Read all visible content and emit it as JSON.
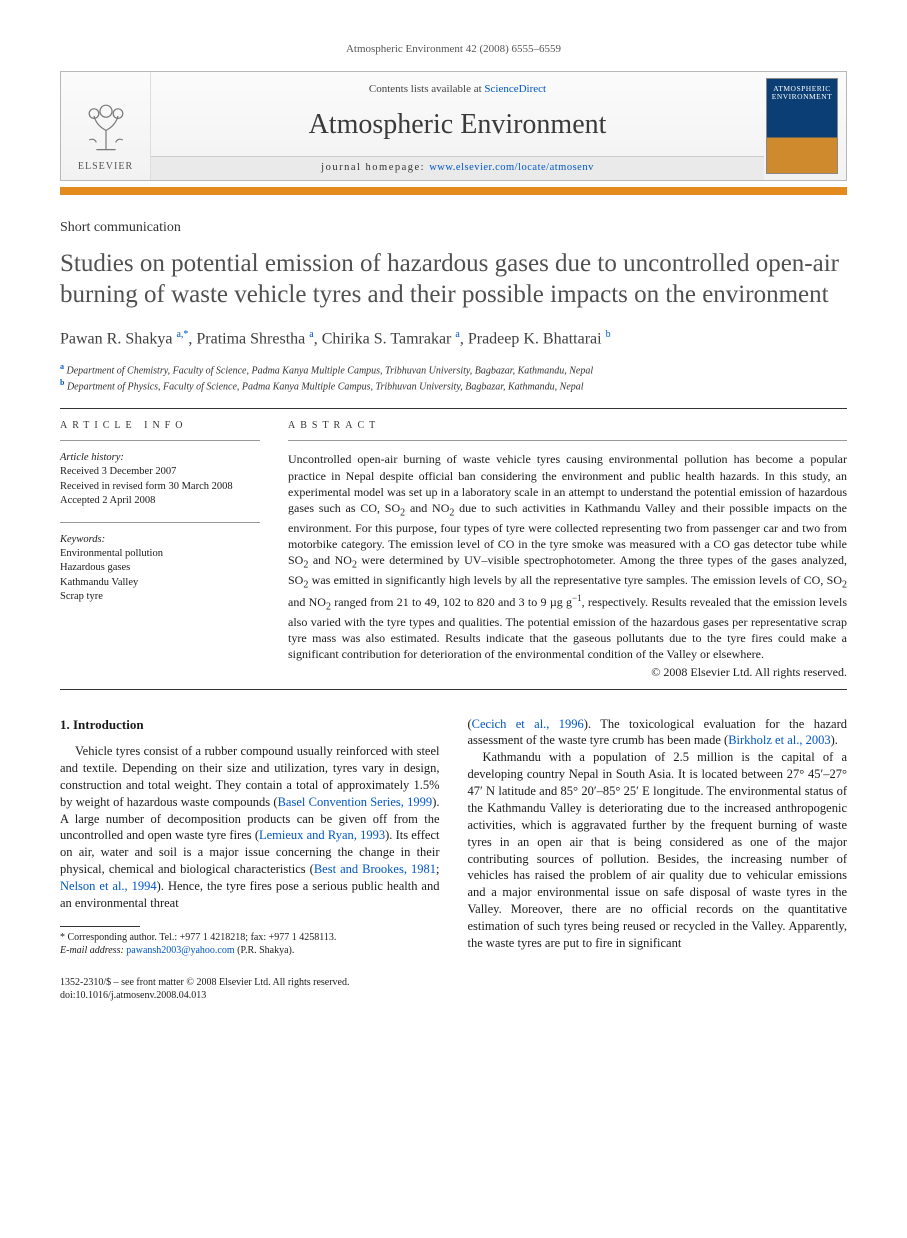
{
  "running_head": "Atmospheric Environment 42 (2008) 6555–6559",
  "masthead": {
    "contents_prefix": "Contents lists available at ",
    "contents_link": "ScienceDirect",
    "journal": "Atmospheric Environment",
    "homepage_prefix": "journal homepage: ",
    "homepage_url": "www.elsevier.com/locate/atmosenv",
    "publisher": "ELSEVIER",
    "cover_title": "ATMOSPHERIC ENVIRONMENT"
  },
  "article_type": "Short communication",
  "title": "Studies on potential emission of hazardous gases due to uncontrolled open-air burning of waste vehicle tyres and their possible impacts on the environment",
  "authors_html": "Pawan R. Shakya <span class='sup'>a,*</span>, Pratima Shrestha <span class='sup'>a</span>, Chirika S. Tamrakar <span class='sup'>a</span>, Pradeep K. Bhattarai <span class='sup'>b</span>",
  "affiliations": {
    "a": "Department of Chemistry, Faculty of Science, Padma Kanya Multiple Campus, Tribhuvan University, Bagbazar, Kathmandu, Nepal",
    "b": "Department of Physics, Faculty of Science, Padma Kanya Multiple Campus, Tribhuvan University, Bagbazar, Kathmandu, Nepal"
  },
  "info_label": "ARTICLE INFO",
  "abstract_label": "ABSTRACT",
  "history": {
    "heading": "Article history:",
    "received": "Received 3 December 2007",
    "revised": "Received in revised form 30 March 2008",
    "accepted": "Accepted 2 April 2008"
  },
  "keywords": {
    "heading": "Keywords:",
    "items": [
      "Environmental pollution",
      "Hazardous gases",
      "Kathmandu Valley",
      "Scrap tyre"
    ]
  },
  "abstract_html": "Uncontrolled open-air burning of waste vehicle tyres causing environmental pollution has become a popular practice in Nepal despite official ban considering the environment and public health hazards. In this study, an experimental model was set up in a laboratory scale in an attempt to understand the potential emission of hazardous gases such as CO, SO<sub>2</sub> and NO<sub>2</sub> due to such activities in Kathmandu Valley and their possible impacts on the environment. For this purpose, four types of tyre were collected representing two from passenger car and two from motorbike category. The emission level of CO in the tyre smoke was measured with a CO gas detector tube while SO<sub>2</sub> and NO<sub>2</sub> were determined by UV–visible spectrophotometer. Among the three types of the gases analyzed, SO<sub>2</sub> was emitted in significantly high levels by all the representative tyre samples. The emission levels of CO, SO<sub>2</sub> and NO<sub>2</sub> ranged from 21 to 49, 102 to 820 and 3 to 9 µg g<sup>−1</sup>, respectively. Results revealed that the emission levels also varied with the tyre types and qualities. The potential emission of the hazardous gases per representative scrap tyre mass was also estimated. Results indicate that the gaseous pollutants due to the tyre fires could make a significant contribution for deterioration of the environmental condition of the Valley or elsewhere.",
  "copyright": "© 2008 Elsevier Ltd. All rights reserved.",
  "intro_heading": "1. Introduction",
  "intro_para1_html": "Vehicle tyres consist of a rubber compound usually reinforced with steel and textile. Depending on their size and utilization, tyres vary in design, construction and total weight. They contain a total of approximately 1.5% by weight of hazardous waste compounds (<a class='ref' href='#'>Basel Convention Series, 1999</a>). A large number of decomposition products can be given off from the uncontrolled and open waste tyre fires (<a class='ref' href='#'>Lemieux and Ryan, 1993</a>). Its effect on air, water and soil is a major issue concerning the change in their physical, chemical and biological characteristics (<a class='ref' href='#'>Best and Brookes, 1981</a>; <a class='ref' href='#'>Nelson et al., 1994</a>). Hence, the tyre fires pose a serious public health and an environmental threat",
  "intro_para2_html": "(<a class='ref' href='#'>Cecich et al., 1996</a>). The toxicological evaluation for the hazard assessment of the waste tyre crumb has been made (<a class='ref' href='#'>Birkholz et al., 2003</a>).",
  "intro_para3_html": "Kathmandu with a population of 2.5 million is the capital of a developing country Nepal in South Asia. It is located between 27° 45′–27° 47′ N latitude and 85° 20′–85° 25′ E longitude. The environmental status of the Kathmandu Valley is deteriorating due to the increased anthropogenic activities, which is aggravated further by the frequent burning of waste tyres in an open air that is being considered as one of the major contributing sources of pollution. Besides, the increasing number of vehicles has raised the problem of air quality due to vehicular emissions and a major environmental issue on safe disposal of waste tyres in the Valley. Moreover, there are no official records on the quantitative estimation of such tyres being reused or recycled in the Valley. Apparently, the waste tyres are put to fire in significant",
  "footnote": {
    "corr": "* Corresponding author. Tel.: +977 1 4218218; fax: +977 1 4258113.",
    "email_label": "E-mail address:",
    "email": "pawansh2003@yahoo.com",
    "email_tail": "(P.R. Shakya)."
  },
  "footer": {
    "line1": "1352-2310/$ – see front matter © 2008 Elsevier Ltd. All rights reserved.",
    "line2": "doi:10.1016/j.atmosenv.2008.04.013"
  },
  "colors": {
    "link": "#0056c7",
    "orange": "#e38b1f",
    "cover_top": "#0b3e74",
    "cover_bottom": "#d08a2e",
    "text": "#1a1a1a",
    "title_gray": "#505050"
  }
}
